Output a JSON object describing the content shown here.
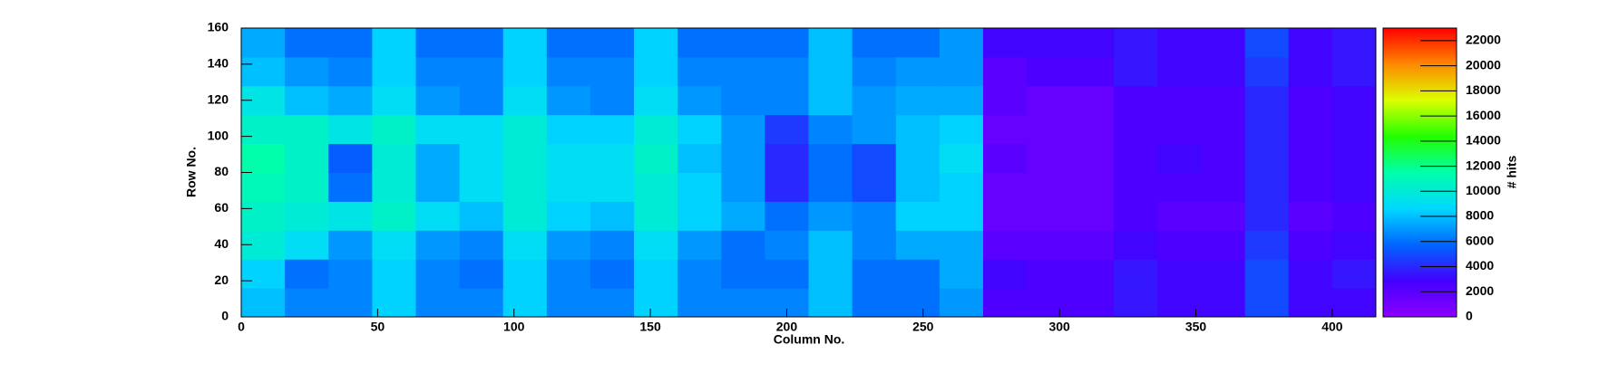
{
  "chart_data": {
    "type": "heatmap",
    "x_label": "Column No.",
    "y_label": "Row No.",
    "z_label": "# hits",
    "xbins": [
      0,
      16,
      32,
      48,
      64,
      80,
      96,
      112,
      128,
      144,
      160,
      176,
      192,
      208,
      224,
      240,
      256,
      272,
      288,
      304,
      320,
      336,
      352,
      368,
      384,
      400,
      416
    ],
    "ybins": [
      0,
      16,
      32,
      48,
      64,
      80,
      96,
      112,
      128,
      144,
      160
    ],
    "z": [
      [
        8000,
        6500,
        6500,
        8500,
        6500,
        6500,
        8500,
        6500,
        6500,
        8500,
        6500,
        6500,
        6500,
        8000,
        6000,
        6000,
        7000,
        2500,
        2500,
        2500,
        3500,
        3000,
        3000,
        5000,
        3000,
        3000
      ],
      [
        8500,
        6000,
        6500,
        8500,
        6500,
        6000,
        8500,
        6500,
        6000,
        8500,
        6500,
        6000,
        6000,
        8000,
        6000,
        6000,
        7500,
        3000,
        2500,
        2500,
        3500,
        3000,
        3000,
        5000,
        3000,
        3500
      ],
      [
        10000,
        9000,
        7000,
        9000,
        7000,
        6500,
        9000,
        7000,
        6500,
        9000,
        7000,
        6000,
        6500,
        8000,
        6500,
        7500,
        7500,
        2000,
        2000,
        2000,
        3000,
        2500,
        2500,
        4500,
        2500,
        3000
      ],
      [
        10500,
        10000,
        9500,
        10500,
        9000,
        8000,
        10000,
        8500,
        8000,
        10000,
        8500,
        7500,
        6000,
        7000,
        6500,
        8500,
        8500,
        1500,
        1500,
        1500,
        2500,
        2000,
        2000,
        4000,
        2000,
        2500
      ],
      [
        11000,
        10500,
        6000,
        10000,
        7500,
        9000,
        10000,
        9000,
        9000,
        10000,
        8500,
        7000,
        4000,
        6000,
        5000,
        8000,
        8500,
        1500,
        1500,
        1500,
        2500,
        2500,
        2500,
        4000,
        2500,
        3000
      ],
      [
        11500,
        10500,
        5500,
        10000,
        7500,
        9000,
        10000,
        9000,
        9000,
        10500,
        8000,
        7000,
        4000,
        6000,
        5000,
        8000,
        9000,
        2000,
        1500,
        1500,
        2500,
        3000,
        2500,
        4000,
        2500,
        3000
      ],
      [
        10500,
        10500,
        9500,
        10500,
        9000,
        9000,
        10000,
        8500,
        8500,
        10000,
        8500,
        7000,
        4500,
        6500,
        7000,
        8000,
        8500,
        1500,
        1500,
        1500,
        2500,
        2500,
        2500,
        4000,
        2500,
        3000
      ],
      [
        9500,
        8000,
        7500,
        9000,
        7000,
        6500,
        9000,
        7000,
        6500,
        9000,
        7000,
        6500,
        6500,
        8000,
        7000,
        7500,
        7500,
        2000,
        1500,
        1500,
        2500,
        2500,
        2500,
        4000,
        2500,
        3000
      ],
      [
        8000,
        7000,
        6500,
        8500,
        6500,
        6500,
        8500,
        6500,
        6500,
        8500,
        6500,
        6500,
        6500,
        8000,
        6500,
        7000,
        7000,
        2000,
        2500,
        2500,
        3500,
        3000,
        3000,
        4500,
        3000,
        3500
      ],
      [
        7500,
        6000,
        6000,
        8500,
        6000,
        6000,
        8500,
        6000,
        6000,
        8500,
        6000,
        6000,
        6000,
        8000,
        6000,
        6000,
        7000,
        3000,
        3000,
        3000,
        3500,
        3000,
        3000,
        5000,
        3000,
        3500
      ]
    ],
    "xlim": [
      0,
      416
    ],
    "xticks": [
      0,
      50,
      100,
      150,
      200,
      250,
      300,
      350,
      400
    ],
    "ylim": [
      0,
      160
    ],
    "yticks": [
      0,
      20,
      40,
      60,
      80,
      100,
      120,
      140,
      160
    ],
    "zlim": [
      0,
      23000
    ],
    "zticks": [
      0,
      2000,
      4000,
      6000,
      8000,
      10000,
      12000,
      14000,
      16000,
      18000,
      20000,
      22000
    ],
    "colormap": [
      "#8c00ff",
      "#4400ff",
      "#0066ff",
      "#00d8ff",
      "#00ffaa",
      "#22ff00",
      "#ddff00",
      "#ff8800",
      "#ff0000"
    ]
  }
}
